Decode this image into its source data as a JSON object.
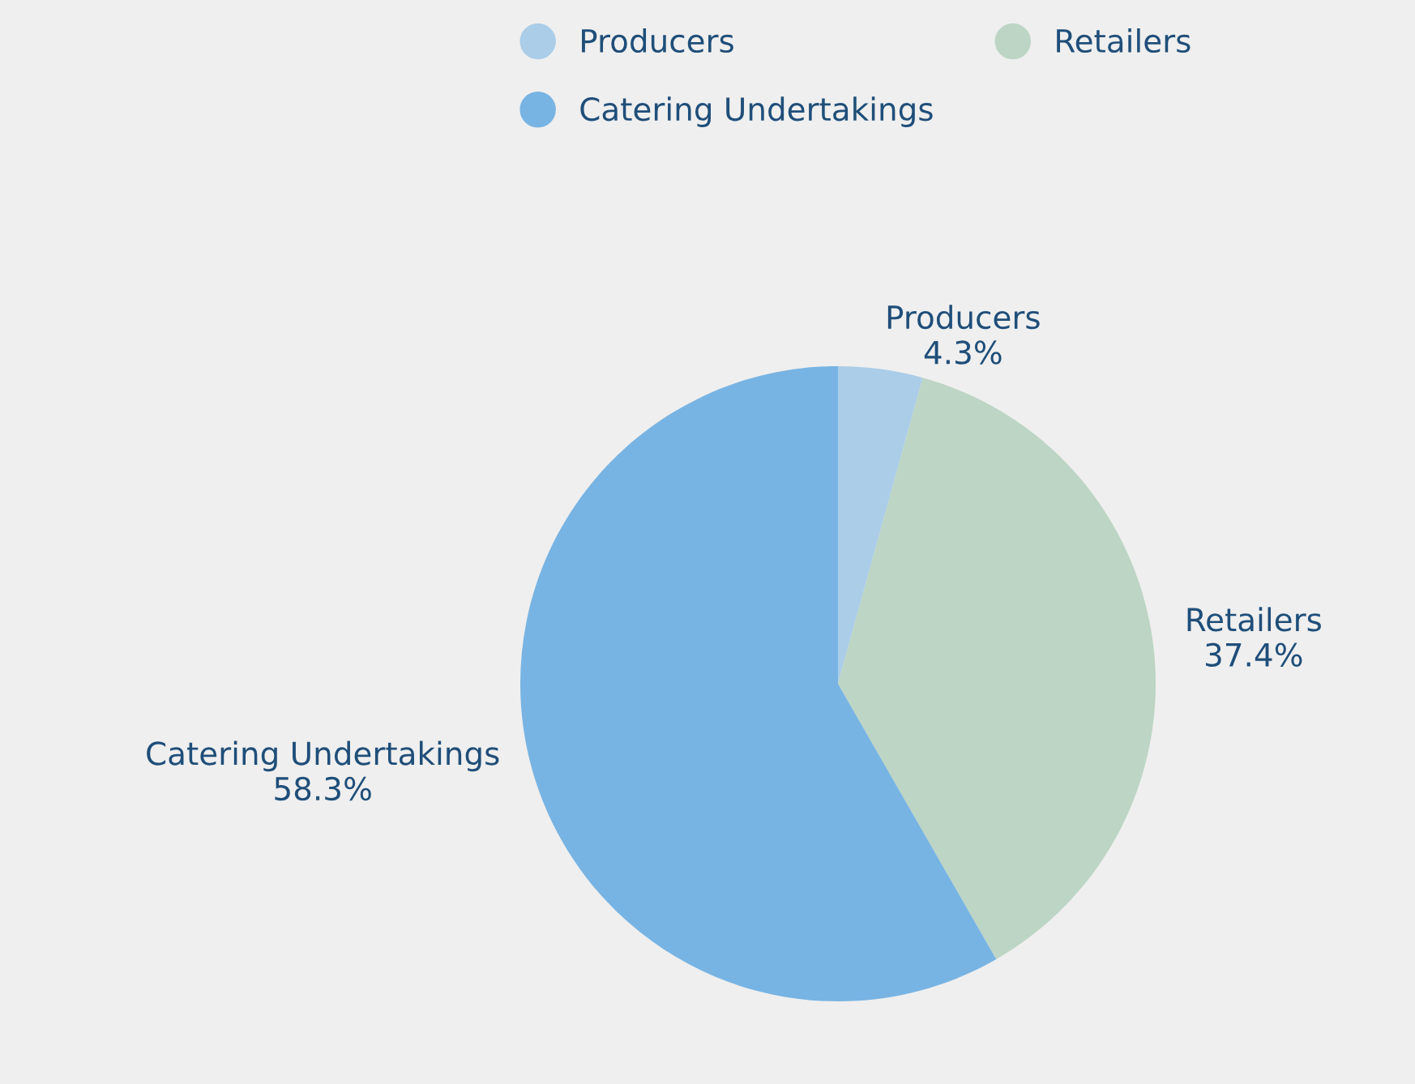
{
  "chart_data": {
    "type": "pie",
    "categories": [
      "Producers",
      "Retailers",
      "Catering Undertakings"
    ],
    "values": [
      4.3,
      37.4,
      58.3
    ],
    "colors": [
      "#abcde8",
      "#bcd5c4",
      "#78b4e3"
    ],
    "value_labels": [
      "4.3%",
      "37.4%",
      "58.3%"
    ],
    "legend": "top"
  }
}
